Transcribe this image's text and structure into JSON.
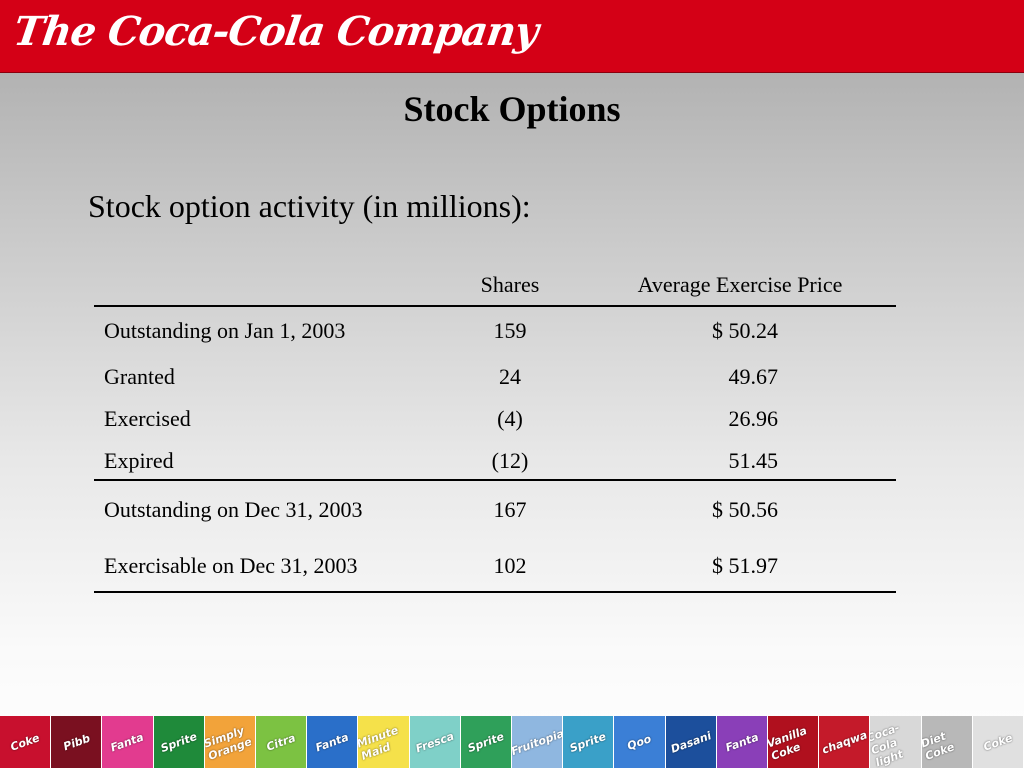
{
  "header": {
    "logo_text": "The Coca-Cola Company"
  },
  "slide": {
    "title": "Stock Options",
    "subtitle": "Stock option activity (in millions):"
  },
  "table": {
    "headers": {
      "shares": "Shares",
      "price": "Average Exercise Price"
    },
    "rows": [
      {
        "label": "Outstanding on Jan 1, 2003",
        "shares": "159",
        "price": "$ 50.24"
      },
      {
        "label": "Granted",
        "shares": "24",
        "price": "49.67"
      },
      {
        "label": "Exercised",
        "shares": "(4)",
        "price": "26.96"
      },
      {
        "label": "Expired",
        "shares": "(12)",
        "price": "51.45"
      },
      {
        "label": "Outstanding on Dec 31, 2003",
        "shares": "167",
        "price": "$ 50.56"
      },
      {
        "label": "Exercisable on Dec 31, 2003",
        "shares": "102",
        "price": "$ 51.97"
      }
    ]
  },
  "footer": {
    "products": [
      {
        "name": "Coke",
        "color": "#c8102e"
      },
      {
        "name": "Pibb",
        "color": "#7a1020"
      },
      {
        "name": "Fanta",
        "color": "#e23b8f"
      },
      {
        "name": "Sprite",
        "color": "#1f8a3a"
      },
      {
        "name": "Simply Orange",
        "color": "#f2a33a"
      },
      {
        "name": "Citra",
        "color": "#7cc242"
      },
      {
        "name": "Fanta",
        "color": "#2a6fc9"
      },
      {
        "name": "Minute Maid",
        "color": "#f5e14a"
      },
      {
        "name": "Fresca",
        "color": "#7fd0c8"
      },
      {
        "name": "Sprite",
        "color": "#2fa05a"
      },
      {
        "name": "Fruitopia",
        "color": "#8fb7e0"
      },
      {
        "name": "Sprite",
        "color": "#3aa0c8"
      },
      {
        "name": "Qoo",
        "color": "#3b7fd6"
      },
      {
        "name": "Dasani",
        "color": "#1c4f9c"
      },
      {
        "name": "Fanta",
        "color": "#8a3fb8"
      },
      {
        "name": "Vanilla Coke",
        "color": "#b0101e"
      },
      {
        "name": "chaqwa",
        "color": "#c41a2a"
      },
      {
        "name": "Coca-Cola light",
        "color": "#d8d8d8"
      },
      {
        "name": "Diet Coke",
        "color": "#b8b8b8"
      },
      {
        "name": "Coke",
        "color": "#e0e0e0"
      }
    ]
  }
}
